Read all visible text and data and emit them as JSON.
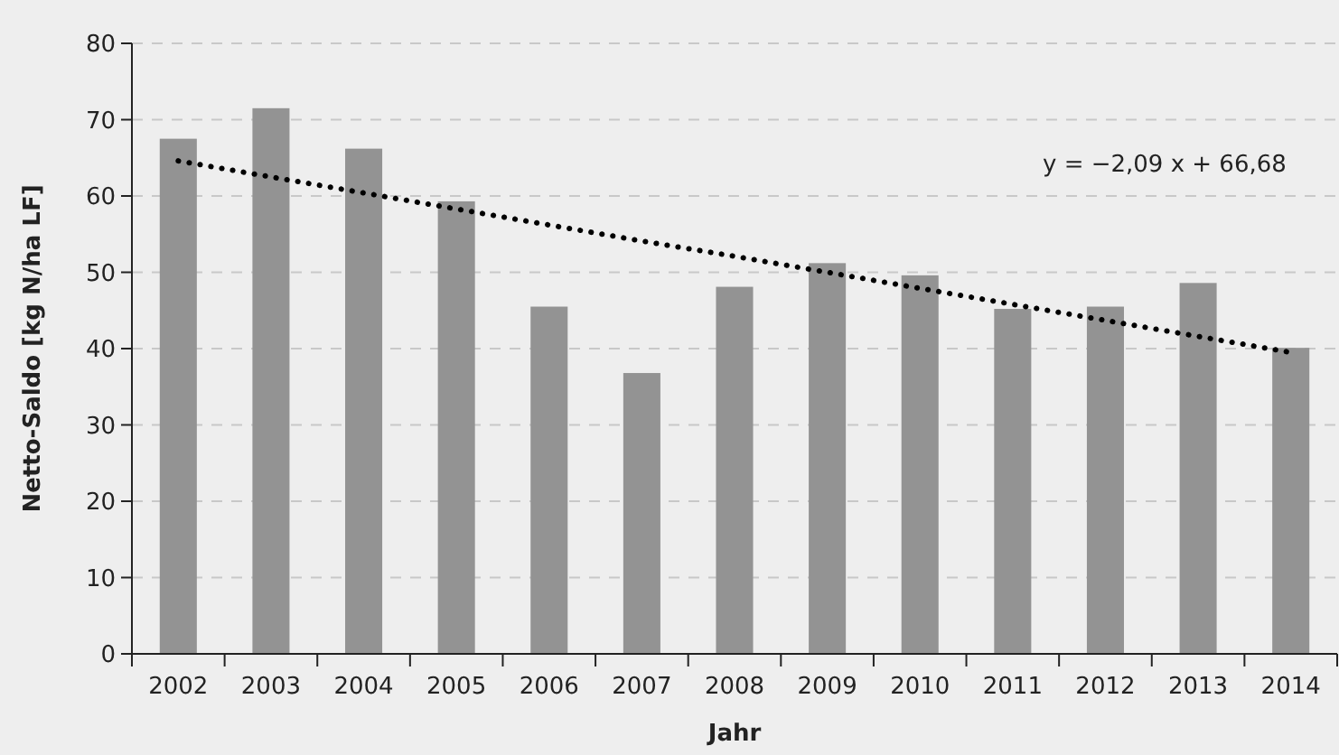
{
  "chart_data": {
    "type": "bar",
    "xlabel": "Jahr",
    "ylabel": "Netto-Saldo [kg N/ha LF]",
    "categories": [
      "2002",
      "2003",
      "2004",
      "2005",
      "2006",
      "2007",
      "2008",
      "2009",
      "2010",
      "2011",
      "2012",
      "2013",
      "2014"
    ],
    "series": [
      {
        "color": "#939393",
        "values": [
          67.5,
          71.5,
          66.2,
          59.3,
          45.5,
          36.8,
          48.1,
          51.2,
          49.6,
          45.2,
          45.5,
          48.6,
          40.1
        ]
      },
      {
        "type": "line",
        "color": "#000000",
        "line_style": "dotted",
        "values": [
          64.6,
          62.5,
          60.4,
          58.3,
          56.2,
          54.1,
          52.1,
          50.0,
          47.9,
          45.8,
          43.7,
          41.6,
          39.5
        ]
      }
    ],
    "annotations": [
      "y = −2,09 x + 66,68"
    ],
    "ylim": [
      0,
      80
    ],
    "yticks": [
      0,
      10,
      20,
      30,
      40,
      50,
      60,
      70,
      80
    ],
    "grid": "y"
  }
}
